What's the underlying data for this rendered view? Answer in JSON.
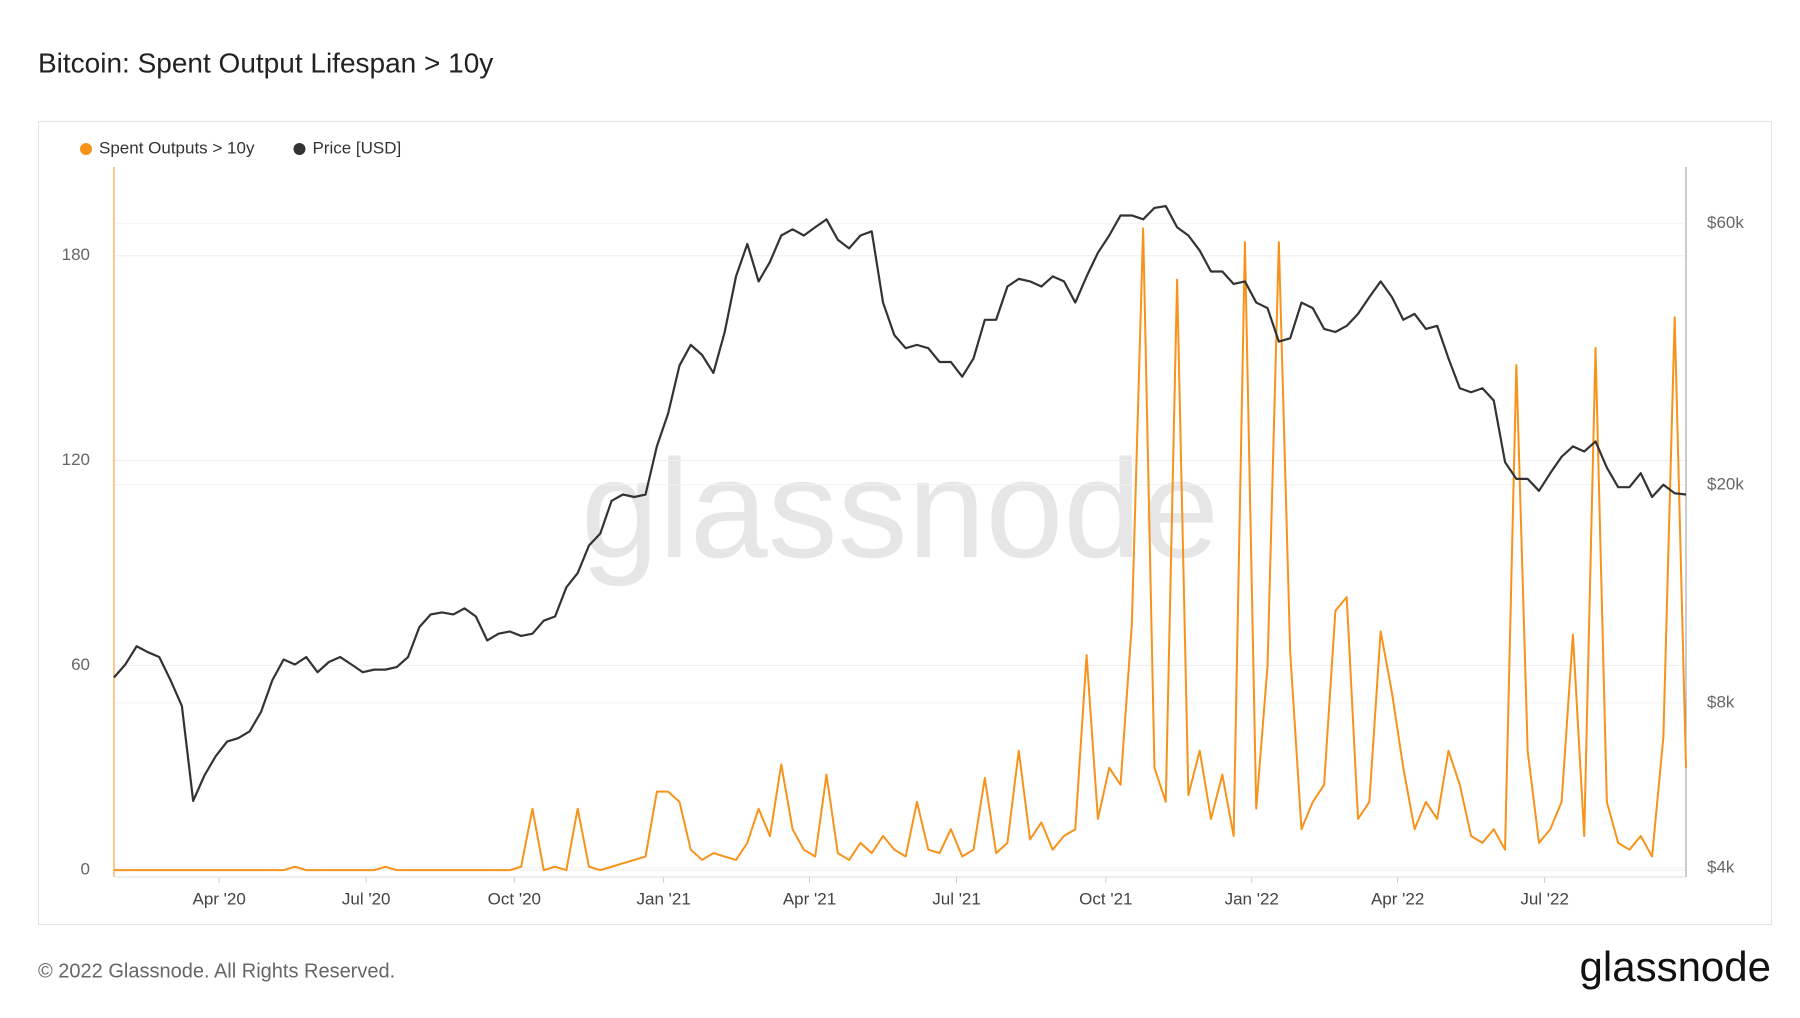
{
  "chart_data": {
    "type": "line",
    "title": "Bitcoin: Spent Output Lifespan > 10y",
    "watermark": "glassnode",
    "xlim": [
      0,
      139
    ],
    "xticks": [
      {
        "value": 9.3,
        "label": "Apr '20"
      },
      {
        "value": 22.3,
        "label": "Jul '20"
      },
      {
        "value": 35.4,
        "label": "Oct '20"
      },
      {
        "value": 48.6,
        "label": "Jan '21"
      },
      {
        "value": 61.5,
        "label": "Apr '21"
      },
      {
        "value": 74.5,
        "label": "Jul '21"
      },
      {
        "value": 87.7,
        "label": "Oct '21"
      },
      {
        "value": 100.6,
        "label": "Jan '22"
      },
      {
        "value": 113.5,
        "label": "Apr '22"
      },
      {
        "value": 126.5,
        "label": "Jul '22"
      }
    ],
    "ylim": [
      -2,
      206
    ],
    "yticks": [
      0,
      60,
      120,
      180
    ],
    "y2lim": [
      3850,
      76000
    ],
    "y2log": true,
    "y2ticks": [
      {
        "value": 4000,
        "label": "$4k"
      },
      {
        "value": 8000,
        "label": "$8k"
      },
      {
        "value": 20000,
        "label": "$20k"
      },
      {
        "value": 60000,
        "label": "$60k"
      }
    ],
    "grid": true,
    "legend": "top-left",
    "series": [
      {
        "name": "Spent Outputs > 10y",
        "color": "#f7931a",
        "values": [
          0,
          0,
          0,
          0,
          0,
          0,
          0,
          0,
          0,
          0,
          0,
          0,
          0,
          0,
          0,
          0,
          1,
          0,
          0,
          0,
          0,
          0,
          0,
          0,
          1,
          0,
          0,
          0,
          0,
          0,
          0,
          0,
          0,
          0,
          0,
          0,
          1,
          18,
          0,
          1,
          0,
          18,
          1,
          0,
          1,
          2,
          3,
          4,
          23,
          23,
          20,
          6,
          3,
          5,
          4,
          3,
          8,
          18,
          10,
          31,
          12,
          6,
          4,
          28,
          5,
          3,
          8,
          5,
          10,
          6,
          4,
          20,
          6,
          5,
          12,
          4,
          6,
          27,
          5,
          8,
          35,
          9,
          14,
          6,
          10,
          12,
          63,
          15,
          30,
          25,
          72,
          188,
          30,
          20,
          173,
          22,
          35,
          15,
          28,
          10,
          184,
          18,
          60,
          184,
          64,
          12,
          20,
          25,
          76,
          80,
          15,
          20,
          70,
          52,
          30,
          12,
          20,
          15,
          35,
          25,
          10,
          8,
          12,
          6,
          148,
          35,
          8,
          12,
          20,
          69,
          10,
          153,
          20,
          8,
          6,
          10,
          4,
          39,
          162,
          30
        ]
      },
      {
        "name": "Price [USD]",
        "color": "#333333",
        "axis": "y2",
        "values": [
          8900,
          9400,
          10150,
          9900,
          9700,
          8800,
          7900,
          5300,
          5900,
          6400,
          6800,
          6900,
          7100,
          7700,
          8800,
          9600,
          9400,
          9700,
          9100,
          9500,
          9700,
          9400,
          9100,
          9200,
          9200,
          9300,
          9700,
          11000,
          11600,
          11700,
          11600,
          11900,
          11500,
          10400,
          10700,
          10800,
          10600,
          10700,
          11300,
          11500,
          13000,
          13800,
          15500,
          16300,
          18700,
          19200,
          19000,
          19200,
          23500,
          27000,
          33000,
          36000,
          34500,
          32000,
          38000,
          48000,
          55000,
          47000,
          51000,
          57000,
          58500,
          57000,
          59000,
          61000,
          56000,
          54000,
          57000,
          58000,
          43000,
          37500,
          35500,
          36000,
          35500,
          33500,
          33500,
          31500,
          34000,
          40000,
          40000,
          46000,
          47500,
          47000,
          46000,
          48000,
          47000,
          43000,
          48000,
          53000,
          57000,
          62000,
          62000,
          61000,
          64000,
          64500,
          59000,
          57000,
          53500,
          49000,
          49000,
          46500,
          47000,
          43000,
          42000,
          36500,
          37000,
          43000,
          42000,
          38500,
          38000,
          39000,
          41000,
          44000,
          47000,
          44000,
          40000,
          41000,
          38500,
          39000,
          34000,
          30000,
          29500,
          30000,
          28500,
          22000,
          20500,
          20500,
          19500,
          21000,
          22500,
          23500,
          23000,
          24000,
          21500,
          19800,
          19800,
          21000,
          19000,
          20000,
          19300,
          19200
        ]
      }
    ]
  },
  "footer": {
    "copyright": "© 2022 Glassnode. All Rights Reserved.",
    "logo": "glassnode"
  }
}
